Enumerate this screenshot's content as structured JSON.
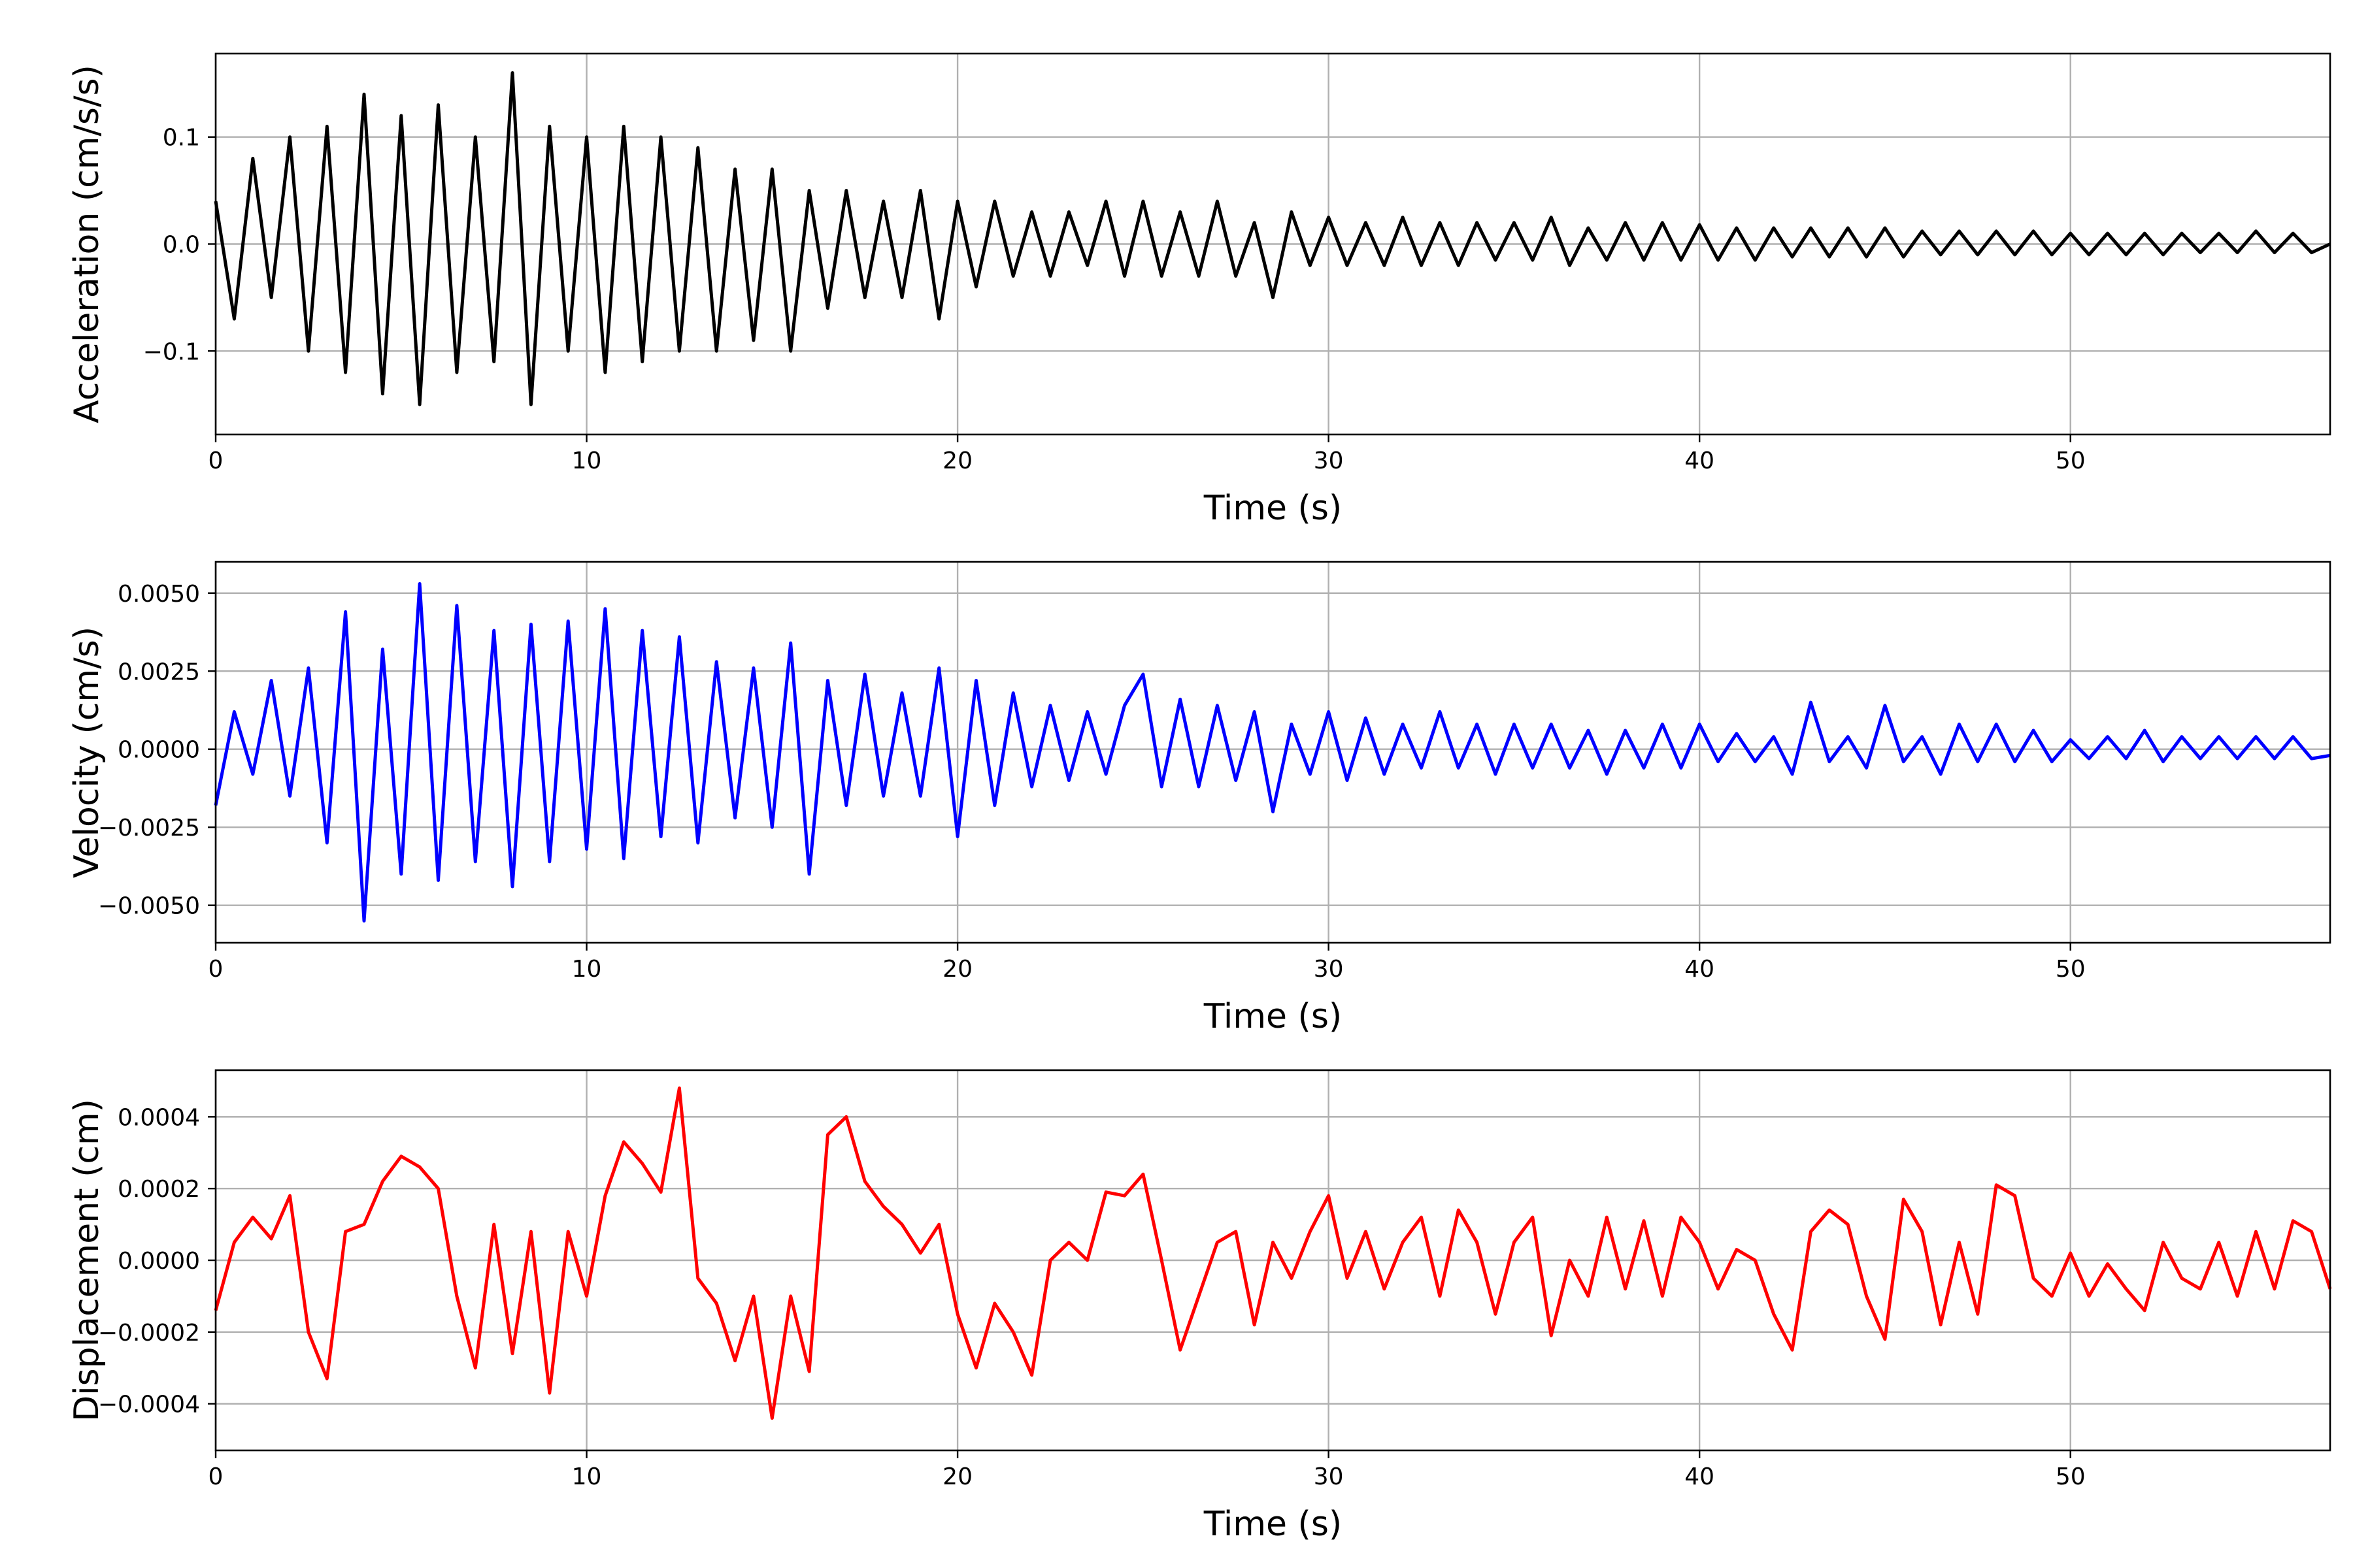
{
  "chart_data": [
    {
      "type": "line",
      "ylabel": "Acceleration (cm/s/s)",
      "xlabel": "Time (s)",
      "xlim": [
        0,
        57
      ],
      "ylim": [
        -0.178,
        0.178
      ],
      "xticks": [
        0,
        10,
        20,
        30,
        40,
        50
      ],
      "xtick_labels": [
        "0",
        "10",
        "20",
        "30",
        "40",
        "50"
      ],
      "yticks": [
        0.1,
        0.0,
        -0.1
      ],
      "ytick_labels": [
        "0.1",
        "0.0",
        "−0.1"
      ],
      "grid": true,
      "series": [
        {
          "color": "#000000",
          "x": [
            0,
            0.5,
            1,
            1.5,
            2,
            2.5,
            3,
            3.5,
            4,
            4.5,
            5,
            5.5,
            6,
            6.5,
            7,
            7.5,
            8,
            8.5,
            9,
            9.5,
            10,
            10.5,
            11,
            11.5,
            12,
            12.5,
            13,
            13.5,
            14,
            14.5,
            15,
            15.5,
            16,
            16.5,
            17,
            17.5,
            18,
            18.5,
            19,
            19.5,
            20,
            20.5,
            21,
            21.5,
            22,
            22.5,
            23,
            23.5,
            24,
            24.5,
            25,
            25.5,
            26,
            26.5,
            27,
            27.5,
            28,
            28.5,
            29,
            29.5,
            30,
            30.5,
            31,
            31.5,
            32,
            32.5,
            33,
            33.5,
            34,
            34.5,
            35,
            35.5,
            36,
            36.5,
            37,
            37.5,
            38,
            38.5,
            39,
            39.5,
            40,
            40.5,
            41,
            41.5,
            42,
            42.5,
            43,
            43.5,
            44,
            44.5,
            45,
            45.5,
            46,
            46.5,
            47,
            47.5,
            48,
            48.5,
            49,
            49.5,
            50,
            50.5,
            51,
            51.5,
            52,
            52.5,
            53,
            53.5,
            54,
            54.5,
            55,
            55.5,
            56,
            56.5,
            57
          ],
          "y": [
            0.04,
            -0.07,
            0.08,
            -0.05,
            0.1,
            -0.1,
            0.11,
            -0.12,
            0.14,
            -0.14,
            0.12,
            -0.15,
            0.13,
            -0.12,
            0.1,
            -0.11,
            0.16,
            -0.15,
            0.11,
            -0.1,
            0.1,
            -0.12,
            0.11,
            -0.11,
            0.1,
            -0.1,
            0.09,
            -0.1,
            0.07,
            -0.09,
            0.07,
            -0.1,
            0.05,
            -0.06,
            0.05,
            -0.05,
            0.04,
            -0.05,
            0.05,
            -0.07,
            0.04,
            -0.04,
            0.04,
            -0.03,
            0.03,
            -0.03,
            0.03,
            -0.02,
            0.04,
            -0.03,
            0.04,
            -0.03,
            0.03,
            -0.03,
            0.04,
            -0.03,
            0.02,
            -0.05,
            0.03,
            -0.02,
            0.025,
            -0.02,
            0.02,
            -0.02,
            0.025,
            -0.02,
            0.02,
            -0.02,
            0.02,
            -0.015,
            0.02,
            -0.015,
            0.025,
            -0.02,
            0.015,
            -0.015,
            0.02,
            -0.015,
            0.02,
            -0.015,
            0.018,
            -0.015,
            0.015,
            -0.015,
            0.015,
            -0.012,
            0.015,
            -0.012,
            0.015,
            -0.012,
            0.015,
            -0.012,
            0.012,
            -0.01,
            0.012,
            -0.01,
            0.012,
            -0.01,
            0.012,
            -0.01,
            0.01,
            -0.01,
            0.01,
            -0.01,
            0.01,
            -0.01,
            0.01,
            -0.008,
            0.01,
            -0.008,
            0.012,
            -0.008,
            0.01,
            -0.008,
            0
          ]
        }
      ]
    },
    {
      "type": "line",
      "ylabel": "Velocity (cm/s)",
      "xlabel": "Time (s)",
      "xlim": [
        0,
        57
      ],
      "ylim": [
        -0.0062,
        0.006
      ],
      "xticks": [
        0,
        10,
        20,
        30,
        40,
        50
      ],
      "xtick_labels": [
        "0",
        "10",
        "20",
        "30",
        "40",
        "50"
      ],
      "yticks": [
        0.005,
        0.0025,
        0.0,
        -0.0025,
        -0.005
      ],
      "ytick_labels": [
        "0.0050",
        "0.0025",
        "0.0000",
        "−0.0025",
        "−0.0050"
      ],
      "grid": true,
      "series": [
        {
          "color": "#0000ff",
          "x": [
            0,
            0.5,
            1,
            1.5,
            2,
            2.5,
            3,
            3.5,
            4,
            4.5,
            5,
            5.5,
            6,
            6.5,
            7,
            7.5,
            8,
            8.5,
            9,
            9.5,
            10,
            10.5,
            11,
            11.5,
            12,
            12.5,
            13,
            13.5,
            14,
            14.5,
            15,
            15.5,
            16,
            16.5,
            17,
            17.5,
            18,
            18.5,
            19,
            19.5,
            20,
            20.5,
            21,
            21.5,
            22,
            22.5,
            23,
            23.5,
            24,
            24.5,
            25,
            25.5,
            26,
            26.5,
            27,
            27.5,
            28,
            28.5,
            29,
            29.5,
            30,
            30.5,
            31,
            31.5,
            32,
            32.5,
            33,
            33.5,
            34,
            34.5,
            35,
            35.5,
            36,
            36.5,
            37,
            37.5,
            38,
            38.5,
            39,
            39.5,
            40,
            40.5,
            41,
            41.5,
            42,
            42.5,
            43,
            43.5,
            44,
            44.5,
            45,
            45.5,
            46,
            46.5,
            47,
            47.5,
            48,
            48.5,
            49,
            49.5,
            50,
            50.5,
            51,
            51.5,
            52,
            52.5,
            53,
            53.5,
            54,
            54.5,
            55,
            55.5,
            56,
            56.5,
            57
          ],
          "y": [
            -0.0018,
            0.0012,
            -0.0008,
            0.0022,
            -0.0015,
            0.0026,
            -0.003,
            0.0044,
            -0.0055,
            0.0032,
            -0.004,
            0.0053,
            -0.0042,
            0.0046,
            -0.0036,
            0.0038,
            -0.0044,
            0.004,
            -0.0036,
            0.0041,
            -0.0032,
            0.0045,
            -0.0035,
            0.0038,
            -0.0028,
            0.0036,
            -0.003,
            0.0028,
            -0.0022,
            0.0026,
            -0.0025,
            0.0034,
            -0.004,
            0.0022,
            -0.0018,
            0.0024,
            -0.0015,
            0.0018,
            -0.0015,
            0.0026,
            -0.0028,
            0.0022,
            -0.0018,
            0.0018,
            -0.0012,
            0.0014,
            -0.001,
            0.0012,
            -0.0008,
            0.0014,
            0.0024,
            -0.0012,
            0.0016,
            -0.0012,
            0.0014,
            -0.001,
            0.0012,
            -0.002,
            0.0008,
            -0.0008,
            0.0012,
            -0.001,
            0.001,
            -0.0008,
            0.0008,
            -0.0006,
            0.0012,
            -0.0006,
            0.0008,
            -0.0008,
            0.0008,
            -0.0006,
            0.0008,
            -0.0006,
            0.0006,
            -0.0008,
            0.0006,
            -0.0006,
            0.0008,
            -0.0006,
            0.0008,
            -0.0004,
            0.0005,
            -0.0004,
            0.0004,
            -0.0008,
            0.0015,
            -0.0004,
            0.0004,
            -0.0006,
            0.0014,
            -0.0004,
            0.0004,
            -0.0008,
            0.0008,
            -0.0004,
            0.0008,
            -0.0004,
            0.0006,
            -0.0004,
            0.0003,
            -0.0003,
            0.0004,
            -0.0003,
            0.0006,
            -0.0004,
            0.0004,
            -0.0003,
            0.0004,
            -0.0003,
            0.0004,
            -0.0003,
            0.0004,
            -0.0003,
            -0.0002
          ]
        }
      ]
    },
    {
      "type": "line",
      "ylabel": "Displacement (cm)",
      "xlabel": "Time (s)",
      "xlim": [
        0,
        57
      ],
      "ylim": [
        -0.00053,
        0.00053
      ],
      "xticks": [
        0,
        10,
        20,
        30,
        40,
        50
      ],
      "xtick_labels": [
        "0",
        "10",
        "20",
        "30",
        "40",
        "50"
      ],
      "yticks": [
        0.0004,
        0.0002,
        0.0,
        -0.0002,
        -0.0004
      ],
      "ytick_labels": [
        "0.0004",
        "0.0002",
        "0.0000",
        "−0.0002",
        "−0.0004"
      ],
      "grid": true,
      "series": [
        {
          "color": "#ff0000",
          "x": [
            0,
            0.5,
            1,
            1.5,
            2,
            2.5,
            3,
            3.5,
            4,
            4.5,
            5,
            5.5,
            6,
            6.5,
            7,
            7.5,
            8,
            8.5,
            9,
            9.5,
            10,
            10.5,
            11,
            11.5,
            12,
            12.5,
            13,
            13.5,
            14,
            14.5,
            15,
            15.5,
            16,
            16.5,
            17,
            17.5,
            18,
            18.5,
            19,
            19.5,
            20,
            20.5,
            21,
            21.5,
            22,
            22.5,
            23,
            23.5,
            24,
            24.5,
            25,
            25.5,
            26,
            26.5,
            27,
            27.5,
            28,
            28.5,
            29,
            29.5,
            30,
            30.5,
            31,
            31.5,
            32,
            32.5,
            33,
            33.5,
            34,
            34.5,
            35,
            35.5,
            36,
            36.5,
            37,
            37.5,
            38,
            38.5,
            39,
            39.5,
            40,
            40.5,
            41,
            41.5,
            42,
            42.5,
            43,
            43.5,
            44,
            44.5,
            45,
            45.5,
            46,
            46.5,
            47,
            47.5,
            48,
            48.5,
            49,
            49.5,
            50,
            50.5,
            51,
            51.5,
            52,
            52.5,
            53,
            53.5,
            54,
            54.5,
            55,
            55.5,
            56,
            56.5,
            57
          ],
          "y": [
            -0.00014,
            5e-05,
            0.00012,
            6e-05,
            0.00018,
            -0.0002,
            -0.00033,
            8e-05,
            0.0001,
            0.00022,
            0.00029,
            0.00026,
            0.0002,
            -0.0001,
            -0.0003,
            0.0001,
            -0.00026,
            8e-05,
            -0.00037,
            8e-05,
            -0.0001,
            0.00018,
            0.00033,
            0.00027,
            0.00019,
            0.00048,
            -5e-05,
            -0.00012,
            -0.00028,
            -0.0001,
            -0.00044,
            -0.0001,
            -0.00031,
            0.00035,
            0.0004,
            0.00022,
            0.00015,
            0.0001,
            2e-05,
            0.0001,
            -0.00015,
            -0.0003,
            -0.00012,
            -0.0002,
            -0.00032,
            0.0,
            5e-05,
            0.0,
            0.00019,
            0.00018,
            0.00024,
            0.0,
            -0.00025,
            -0.0001,
            5e-05,
            8e-05,
            -0.00018,
            5e-05,
            -5e-05,
            8e-05,
            0.00018,
            -5e-05,
            8e-05,
            -8e-05,
            5e-05,
            0.00012,
            -0.0001,
            0.00014,
            5e-05,
            -0.00015,
            5e-05,
            0.00012,
            -0.00021,
            0.0,
            -0.0001,
            0.00012,
            -8e-05,
            0.00011,
            -0.0001,
            0.00012,
            5e-05,
            -8e-05,
            3e-05,
            0.0,
            -0.00015,
            -0.00025,
            8e-05,
            0.00014,
            0.0001,
            -0.0001,
            -0.00022,
            0.00017,
            8e-05,
            -0.00018,
            5e-05,
            -0.00015,
            0.00021,
            0.00018,
            -5e-05,
            -0.0001,
            2e-05,
            -0.0001,
            -1e-05,
            -8e-05,
            -0.00014,
            5e-05,
            -5e-05,
            -8e-05,
            5e-05,
            -0.0001,
            8e-05,
            -8e-05,
            0.00011,
            8e-05,
            -8e-05
          ]
        }
      ]
    }
  ]
}
